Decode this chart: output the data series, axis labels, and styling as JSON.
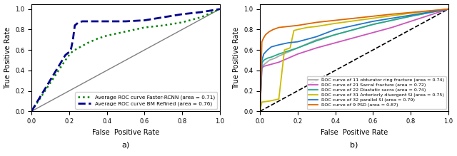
{
  "fig_width": 6.4,
  "fig_height": 2.19,
  "dpi": 100,
  "subplot_a": {
    "diagonal_color": "gray",
    "diagonal_linewidth": 1.0,
    "curves": [
      {
        "label": "Average ROC curve Faster-RCNN (area = 0.71)",
        "color": "green",
        "linestyle": "dotted",
        "linewidth": 1.8,
        "x": [
          0.0,
          0.18,
          0.2,
          0.22,
          0.25,
          0.3,
          0.35,
          0.4,
          0.5,
          0.6,
          0.7,
          0.8,
          0.9,
          1.0
        ],
        "y": [
          0.0,
          0.5,
          0.55,
          0.59,
          0.62,
          0.67,
          0.71,
          0.74,
          0.78,
          0.82,
          0.84,
          0.87,
          0.92,
          1.0
        ]
      },
      {
        "label": "Average ROC curve BM Refined (area = 0.76)",
        "color": "darkblue",
        "linestyle": "dashed",
        "linewidth": 2.0,
        "x": [
          0.0,
          0.18,
          0.2,
          0.21,
          0.22,
          0.23,
          0.25,
          0.27,
          0.3,
          0.4,
          0.5,
          0.6,
          0.7,
          0.8,
          0.9,
          1.0
        ],
        "y": [
          0.0,
          0.55,
          0.58,
          0.61,
          0.7,
          0.84,
          0.87,
          0.88,
          0.88,
          0.88,
          0.88,
          0.89,
          0.92,
          0.95,
          0.97,
          1.0
        ]
      }
    ],
    "legend_loc": "lower right",
    "xlabel": "False  Positive Rate",
    "ylabel": "True Positive Rate",
    "label": "a)"
  },
  "subplot_b": {
    "diagonal_color": "black",
    "diagonal_linestyle": "dashed",
    "diagonal_linewidth": 1.2,
    "curves": [
      {
        "label": "ROC curve of 11 obturator ring fracture (area = 0.74)",
        "color": "#aaaaaa",
        "linewidth": 1.3,
        "x": [
          0.0,
          0.01,
          0.03,
          0.05,
          0.08,
          0.1,
          0.15,
          0.2,
          0.3,
          0.4,
          0.6,
          0.8,
          1.0
        ],
        "y": [
          0.0,
          0.44,
          0.47,
          0.5,
          0.52,
          0.54,
          0.58,
          0.62,
          0.7,
          0.75,
          0.85,
          0.93,
          1.0
        ]
      },
      {
        "label": "ROC curve of 21 Sacral fracture (area = 0.72)",
        "color": "#cc55bb",
        "linewidth": 1.3,
        "x": [
          0.0,
          0.01,
          0.02,
          0.04,
          0.06,
          0.08,
          0.1,
          0.15,
          0.2,
          0.3,
          0.5,
          0.7,
          1.0
        ],
        "y": [
          0.0,
          0.42,
          0.44,
          0.45,
          0.46,
          0.47,
          0.48,
          0.52,
          0.56,
          0.62,
          0.72,
          0.82,
          1.0
        ]
      },
      {
        "label": "ROC curve of 22 Diastatic sacra (area = 0.74)",
        "color": "#22aa88",
        "linewidth": 1.3,
        "x": [
          0.0,
          0.01,
          0.02,
          0.04,
          0.06,
          0.1,
          0.15,
          0.2,
          0.3,
          0.4,
          0.6,
          0.8,
          1.0
        ],
        "y": [
          0.0,
          0.47,
          0.5,
          0.52,
          0.53,
          0.56,
          0.59,
          0.62,
          0.69,
          0.75,
          0.85,
          0.93,
          1.0
        ]
      },
      {
        "label": "ROC curve of 31 Anteriorly divergent SI (area = 0.75)",
        "color": "#ccbb00",
        "linewidth": 1.3,
        "x": [
          0.0,
          0.01,
          0.05,
          0.1,
          0.13,
          0.16,
          0.18,
          0.2,
          0.25,
          0.3,
          0.4,
          0.6,
          0.8,
          1.0
        ],
        "y": [
          0.0,
          0.09,
          0.1,
          0.12,
          0.6,
          0.62,
          0.79,
          0.8,
          0.82,
          0.83,
          0.86,
          0.91,
          0.96,
          1.0
        ]
      },
      {
        "label": "ROC curve of 32 parallel SI (area = 0.79)",
        "color": "#2277cc",
        "linewidth": 1.3,
        "x": [
          0.0,
          0.01,
          0.02,
          0.04,
          0.06,
          0.1,
          0.15,
          0.2,
          0.3,
          0.4,
          0.6,
          0.8,
          1.0
        ],
        "y": [
          0.0,
          0.5,
          0.56,
          0.6,
          0.63,
          0.65,
          0.67,
          0.68,
          0.73,
          0.8,
          0.88,
          0.94,
          1.0
        ]
      },
      {
        "label": "ROC curve of 9 PSD (area = 0.87)",
        "color": "#dd6600",
        "linewidth": 1.3,
        "x": [
          0.0,
          0.01,
          0.02,
          0.03,
          0.05,
          0.07,
          0.1,
          0.15,
          0.2,
          0.3,
          0.5,
          0.7,
          1.0
        ],
        "y": [
          0.0,
          0.68,
          0.72,
          0.75,
          0.78,
          0.8,
          0.82,
          0.83,
          0.84,
          0.87,
          0.91,
          0.95,
          1.0
        ]
      }
    ],
    "legend_loc": "lower right",
    "xlabel": "False  Positive Rate",
    "ylabel": "True Positive Rate",
    "label": "b)"
  }
}
